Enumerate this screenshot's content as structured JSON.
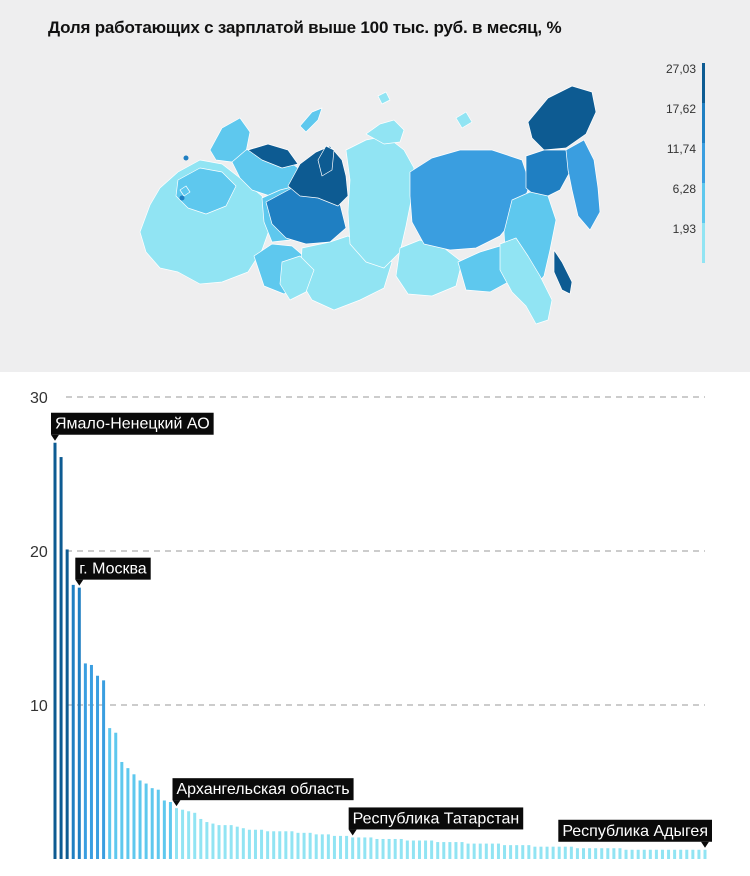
{
  "title": "Доля работающих с зарплатой выше 100 тыс. руб. в месяц, %",
  "colors": {
    "scale": [
      "#91e4f3",
      "#5ec8ee",
      "#3a9ee0",
      "#1f7fc2",
      "#0d5b92"
    ],
    "background": "#eeeeef"
  },
  "legend": {
    "labels": [
      "27,03",
      "17,62",
      "11,74",
      "6,28",
      "1,93"
    ]
  },
  "chart_data": {
    "type": "bar",
    "ylim": [
      0,
      30
    ],
    "yticks": [
      10,
      20,
      30
    ],
    "ytick_labels": [
      "10",
      "20",
      "30"
    ],
    "grid": true,
    "values": [
      27.03,
      26.1,
      20.1,
      17.8,
      17.62,
      12.7,
      12.6,
      11.9,
      11.6,
      8.5,
      8.2,
      6.3,
      5.9,
      5.5,
      5.1,
      4.9,
      4.6,
      4.5,
      3.8,
      3.7,
      3.3,
      3.2,
      3.1,
      3.0,
      2.6,
      2.4,
      2.3,
      2.2,
      2.2,
      2.2,
      2.1,
      2.0,
      1.9,
      1.9,
      1.9,
      1.8,
      1.8,
      1.8,
      1.8,
      1.8,
      1.7,
      1.7,
      1.7,
      1.6,
      1.6,
      1.6,
      1.5,
      1.5,
      1.5,
      1.4,
      1.4,
      1.4,
      1.4,
      1.3,
      1.3,
      1.3,
      1.3,
      1.3,
      1.2,
      1.2,
      1.2,
      1.2,
      1.2,
      1.1,
      1.1,
      1.1,
      1.1,
      1.1,
      1.0,
      1.0,
      1.0,
      1.0,
      1.0,
      1.0,
      0.9,
      0.9,
      0.9,
      0.9,
      0.9,
      0.8,
      0.8,
      0.8,
      0.8,
      0.8,
      0.8,
      0.8,
      0.7,
      0.7,
      0.7,
      0.7,
      0.7,
      0.7,
      0.7,
      0.7,
      0.6,
      0.6,
      0.6,
      0.6,
      0.6,
      0.6,
      0.6,
      0.6,
      0.6,
      0.6,
      0.6,
      0.6,
      0.6,
      0.6
    ],
    "annotations": [
      {
        "label": "Ямало-Ненецкий АО",
        "index": 0
      },
      {
        "label": "г. Москва",
        "index": 4
      },
      {
        "label": "Архангельская область",
        "index": 20
      },
      {
        "label": "Республика Татарстан",
        "index": 49
      },
      {
        "label": "Республика Адыгея",
        "index": 107
      }
    ]
  }
}
